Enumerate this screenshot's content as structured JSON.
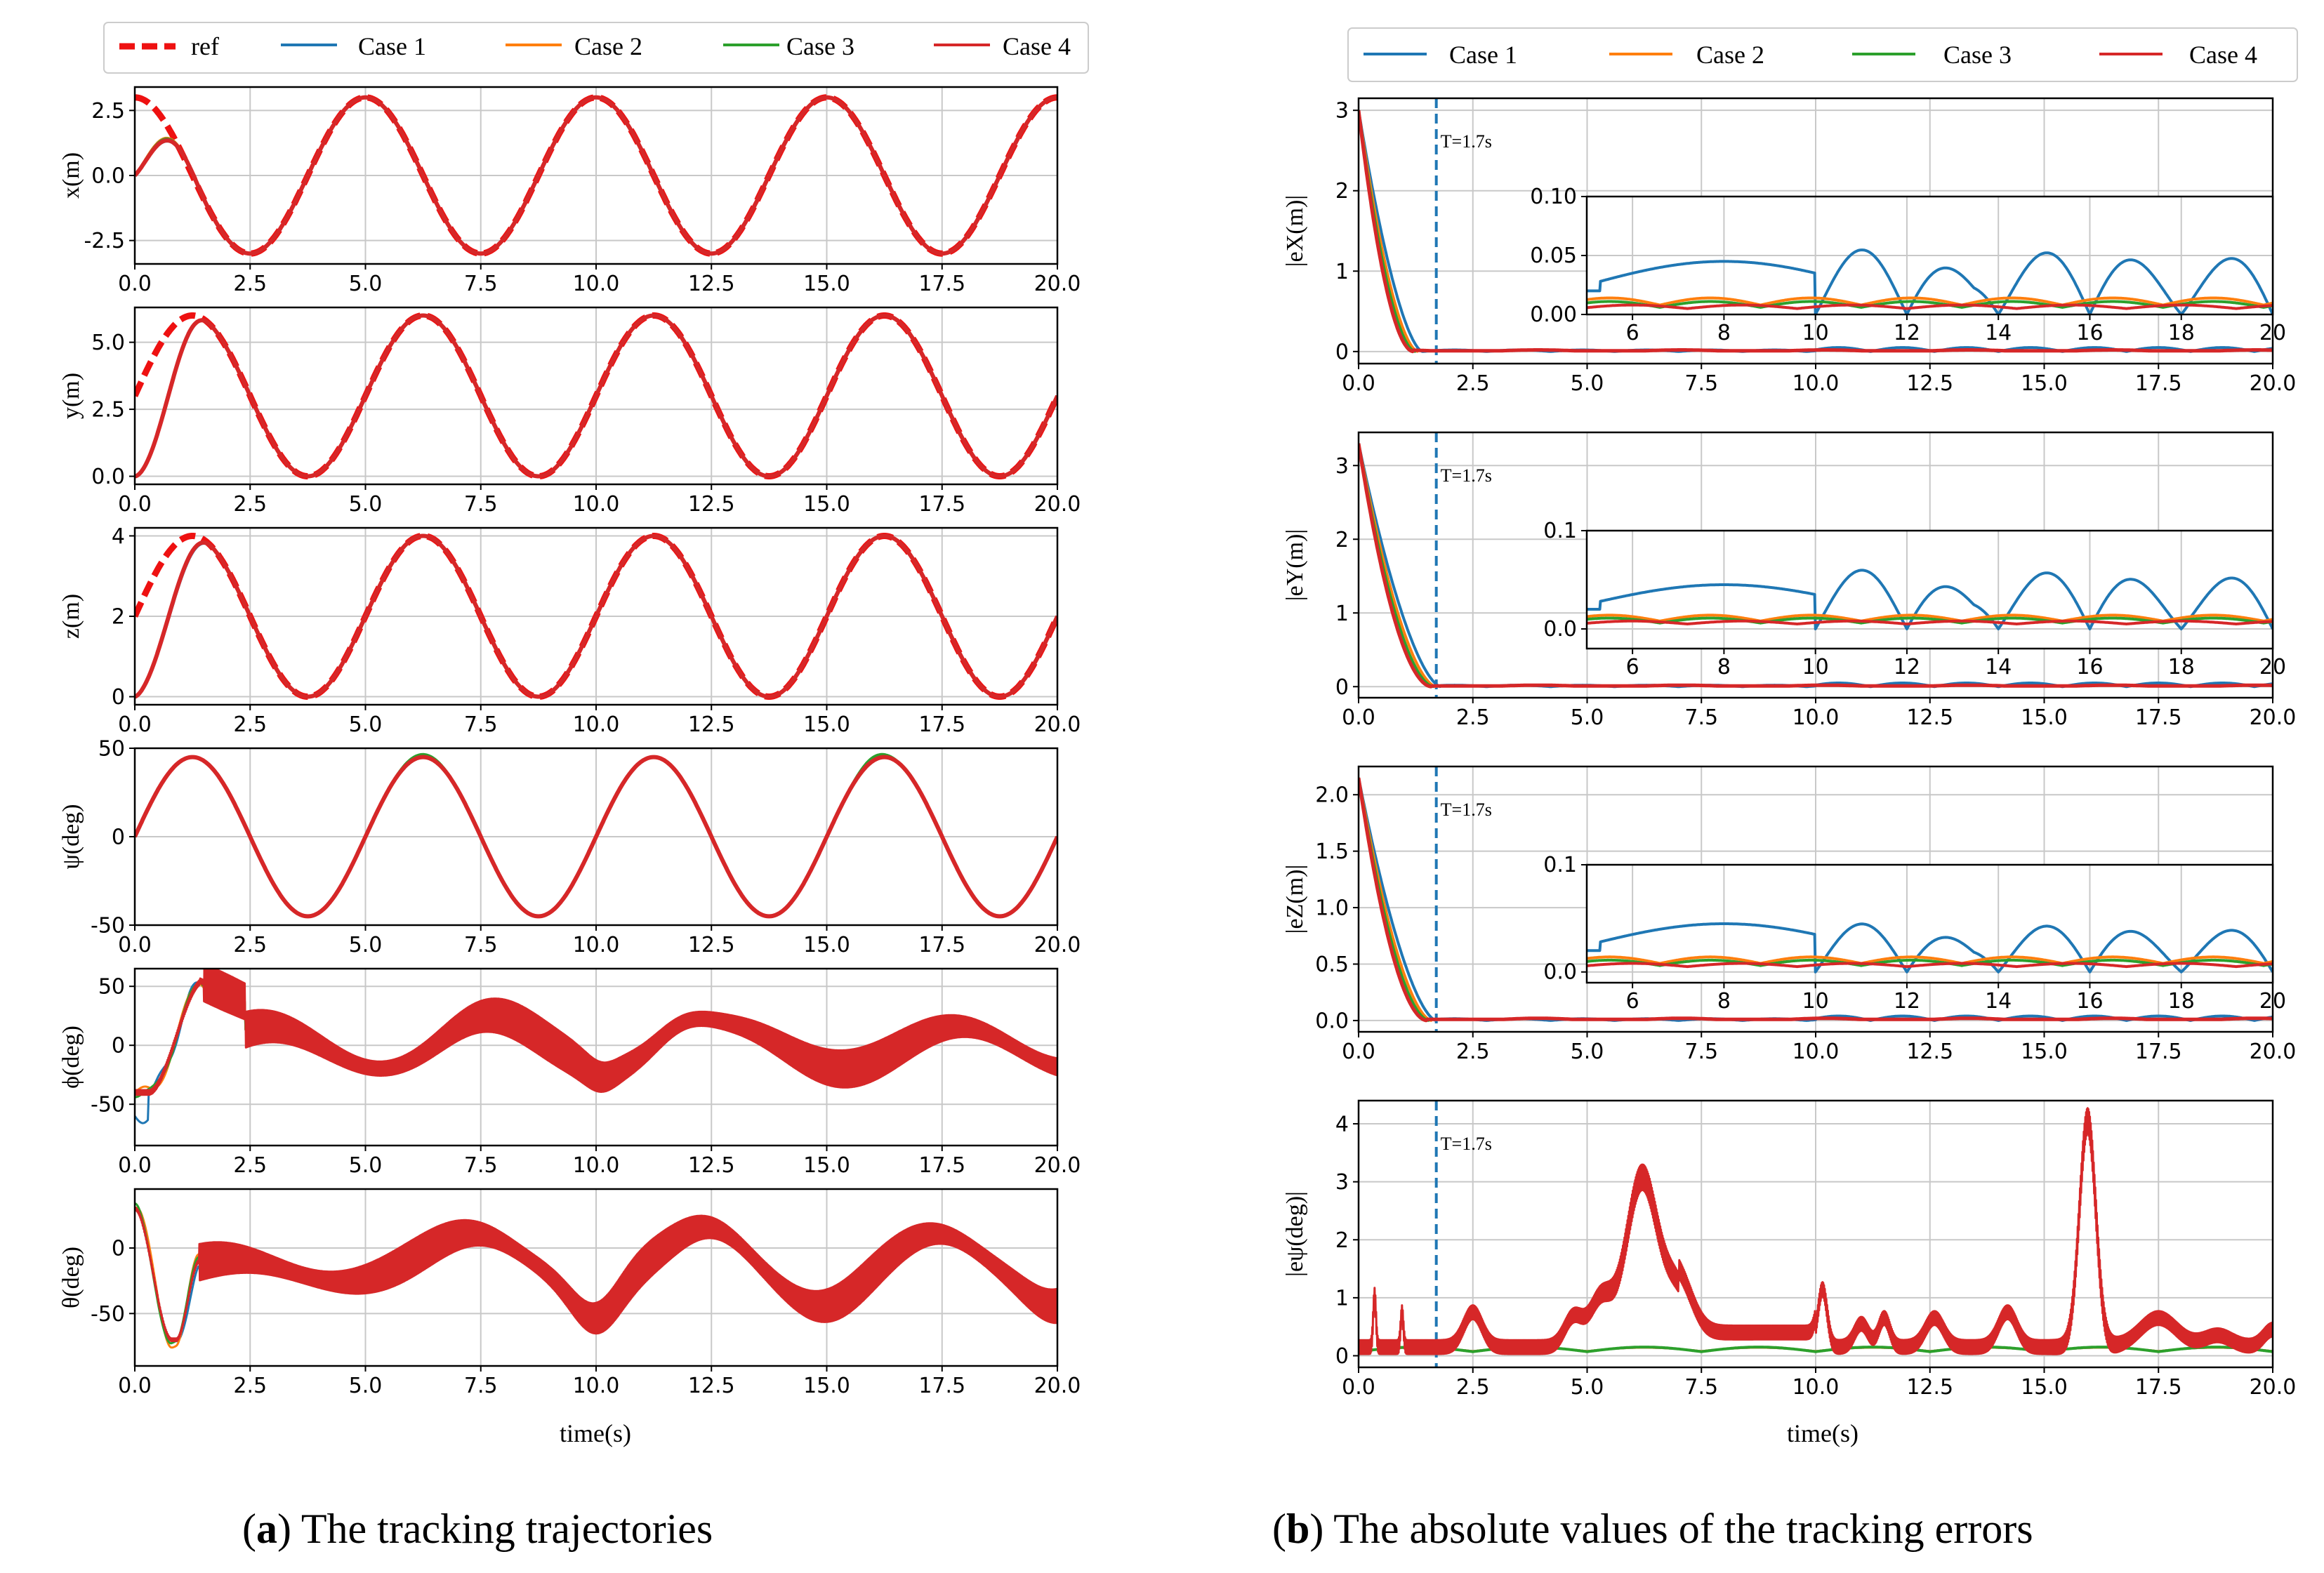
{
  "colors": {
    "ref": "#ee1111",
    "c1": "#1f77b4",
    "c2": "#ff7f0e",
    "c3": "#2ca02c",
    "c4": "#d62728",
    "grid": "#c8c8c8",
    "vline": "#1f77b4"
  },
  "legend_left": {
    "ref": "ref",
    "case1": "Case 1",
    "case2": "Case 2",
    "case3": "Case 3",
    "case4": "Case 4"
  },
  "legend_right": {
    "case1": "Case 1",
    "case2": "Case 2",
    "case3": "Case 3",
    "case4": "Case 4"
  },
  "captions": {
    "a_letter": "a",
    "a_text": "The tracking trajectories",
    "b_letter": "b",
    "b_text": "The absolute values of the tracking errors"
  },
  "xaxis_label": "time(s)",
  "xticks": [
    "0.0",
    "2.5",
    "5.0",
    "7.5",
    "10.0",
    "12.5",
    "15.0",
    "17.5",
    "20.0"
  ],
  "annotation": "T=1.7s",
  "chart_data": [
    {
      "id": "x",
      "type": "line",
      "ylabel": "x(m)",
      "xlim": [
        0,
        20
      ],
      "ylim": [
        -3.4,
        3.4
      ],
      "yticks": [
        "-2.5",
        "0.0",
        "2.5"
      ],
      "series": [
        {
          "name": "ref",
          "style": "dashed"
        },
        {
          "name": "Case 1"
        },
        {
          "name": "Case 2"
        },
        {
          "name": "Case 3"
        },
        {
          "name": "Case 4"
        }
      ],
      "reference": "3cos(2πt/5)",
      "initial_value": 0,
      "peak_value": 3
    },
    {
      "id": "y",
      "type": "line",
      "ylabel": "y(m)",
      "xlim": [
        0,
        20
      ],
      "ylim": [
        -0.3,
        6.3
      ],
      "yticks": [
        "0.0",
        "2.5",
        "5.0"
      ],
      "series": [
        {
          "name": "ref",
          "style": "dashed"
        },
        {
          "name": "Case 1"
        },
        {
          "name": "Case 2"
        },
        {
          "name": "Case 3"
        },
        {
          "name": "Case 4"
        }
      ],
      "reference": "3+3sin(2πt/5)",
      "initial_value": 0,
      "peak_value": 6
    },
    {
      "id": "z",
      "type": "line",
      "ylabel": "z(m)",
      "xlim": [
        0,
        20
      ],
      "ylim": [
        -0.2,
        4.2
      ],
      "yticks": [
        "0",
        "2",
        "4"
      ],
      "series": [
        {
          "name": "ref",
          "style": "dashed"
        },
        {
          "name": "Case 1"
        },
        {
          "name": "Case 2"
        },
        {
          "name": "Case 3"
        },
        {
          "name": "Case 4"
        }
      ],
      "reference": "2+2sin(2πt/5)",
      "initial_value": 0,
      "peak_value": 4
    },
    {
      "id": "psi",
      "type": "line",
      "ylabel": "ψ(deg)",
      "xlim": [
        0,
        20
      ],
      "ylim": [
        -50,
        50
      ],
      "yticks": [
        "-50",
        "0",
        "50"
      ],
      "series": [
        {
          "name": "Case 1"
        },
        {
          "name": "Case 2"
        },
        {
          "name": "Case 3"
        },
        {
          "name": "Case 4"
        }
      ],
      "reference": "45sin(2πt/5)",
      "peak_value": 45
    },
    {
      "id": "phi",
      "type": "line",
      "ylabel": "ϕ(deg)",
      "xlim": [
        0,
        20
      ],
      "ylim": [
        -85,
        65
      ],
      "yticks": [
        "-50",
        "0",
        "50"
      ],
      "series": [
        {
          "name": "Case 1"
        },
        {
          "name": "Case 2"
        },
        {
          "name": "Case 3"
        },
        {
          "name": "Case 4"
        }
      ],
      "peak_value": 55,
      "min_value": -75
    },
    {
      "id": "theta",
      "type": "line",
      "ylabel": "θ(deg)",
      "xlim": [
        0,
        20
      ],
      "ylim": [
        -90,
        45
      ],
      "yticks": [
        "-50",
        "0"
      ],
      "series": [
        {
          "name": "Case 1"
        },
        {
          "name": "Case 2"
        },
        {
          "name": "Case 3"
        },
        {
          "name": "Case 4"
        }
      ],
      "peak_value": 35,
      "min_value": -80
    },
    {
      "id": "ex",
      "type": "line",
      "ylabel": "|eX(m)|",
      "xlim": [
        0,
        20
      ],
      "ylim": [
        -0.15,
        3.15
      ],
      "yticks": [
        "0",
        "1",
        "2",
        "3"
      ],
      "series": [
        {
          "name": "Case 1"
        },
        {
          "name": "Case 2"
        },
        {
          "name": "Case 3"
        },
        {
          "name": "Case 4"
        }
      ],
      "initial_value": 3,
      "vline": 1.7,
      "inset": {
        "xlim": [
          5,
          20
        ],
        "ylim": [
          0,
          0.1
        ],
        "xticks": [
          "6",
          "8",
          "10",
          "12",
          "14",
          "16",
          "18",
          "20"
        ],
        "yticks": [
          "0.00",
          "0.05",
          "0.10"
        ],
        "case1_peak": 0.055
      }
    },
    {
      "id": "ey",
      "type": "line",
      "ylabel": "|eY(m)|",
      "xlim": [
        0,
        20
      ],
      "ylim": [
        -0.15,
        3.45
      ],
      "yticks": [
        "0",
        "1",
        "2",
        "3"
      ],
      "series": [
        {
          "name": "Case 1"
        },
        {
          "name": "Case 2"
        },
        {
          "name": "Case 3"
        },
        {
          "name": "Case 4"
        }
      ],
      "initial_value": 3.3,
      "vline": 1.7,
      "inset": {
        "xlim": [
          5,
          20
        ],
        "ylim": [
          -0.02,
          0.1
        ],
        "xticks": [
          "6",
          "8",
          "10",
          "12",
          "14",
          "16",
          "18",
          "20"
        ],
        "yticks": [
          "0.0",
          "0.1"
        ],
        "case1_peak": 0.06
      }
    },
    {
      "id": "ez",
      "type": "line",
      "ylabel": "|eZ(m)|",
      "xlim": [
        0,
        20
      ],
      "ylim": [
        -0.1,
        2.25
      ],
      "yticks": [
        "0.0",
        "0.5",
        "1.0",
        "1.5",
        "2.0"
      ],
      "series": [
        {
          "name": "Case 1"
        },
        {
          "name": "Case 2"
        },
        {
          "name": "Case 3"
        },
        {
          "name": "Case 4"
        }
      ],
      "initial_value": 2.15,
      "vline": 1.7,
      "inset": {
        "xlim": [
          5,
          20
        ],
        "ylim": [
          -0.01,
          0.1
        ],
        "xticks": [
          "6",
          "8",
          "10",
          "12",
          "14",
          "16",
          "18",
          "20"
        ],
        "yticks": [
          "0.0",
          "0.1"
        ],
        "case1_peak": 0.045
      }
    },
    {
      "id": "epsi",
      "type": "line",
      "ylabel": "|eψ(deg)|",
      "xlim": [
        0,
        20
      ],
      "ylim": [
        -0.2,
        4.4
      ],
      "yticks": [
        "0",
        "1",
        "2",
        "3",
        "4"
      ],
      "series": [
        {
          "name": "Case 1"
        },
        {
          "name": "Case 2"
        },
        {
          "name": "Case 3"
        },
        {
          "name": "Case 4"
        }
      ],
      "vline": 1.7,
      "peak_value": 4.3
    }
  ]
}
